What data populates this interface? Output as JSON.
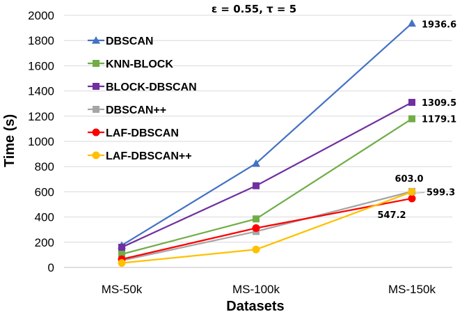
{
  "chart_data": {
    "type": "line",
    "title": "ε = 0.55, τ = 5",
    "xlabel": "Datasets",
    "ylabel": "Time (s)",
    "categories": [
      "MS-50k",
      "MS-100k",
      "MS-150k"
    ],
    "ylim": [
      0,
      2000
    ],
    "yticks": [
      0,
      200,
      400,
      600,
      800,
      1000,
      1200,
      1400,
      1600,
      1800,
      2000
    ],
    "ytick_labels": [
      "0",
      "200",
      "400",
      "600",
      "800",
      "1000",
      "1200",
      "1400",
      "1600",
      "1800",
      "2000"
    ],
    "grid": true,
    "legend_position": "top-left",
    "series": [
      {
        "name": "DBSCAN",
        "color": "#4472C4",
        "marker": "triangle",
        "values": [
          175,
          825,
          1936.6
        ]
      },
      {
        "name": "KNN-BLOCK",
        "color": "#70AD47",
        "marker": "square",
        "values": [
          105,
          385,
          1179.1
        ]
      },
      {
        "name": "BLOCK-DBSCAN",
        "color": "#7030A0",
        "marker": "square",
        "values": [
          160,
          648,
          1309.5
        ]
      },
      {
        "name": "DBSCAN++",
        "color": "#A5A5A5",
        "marker": "square",
        "values": [
          55,
          285,
          603.0
        ]
      },
      {
        "name": "LAF-DBSCAN",
        "color": "#FF0000",
        "marker": "circle",
        "values": [
          65,
          312,
          547.2
        ]
      },
      {
        "name": "LAF-DBSCAN++",
        "color": "#FFC000",
        "marker": "circle",
        "values": [
          35,
          142,
          599.3
        ]
      }
    ],
    "data_labels": [
      {
        "series": "DBSCAN",
        "text": "1936.6"
      },
      {
        "series": "BLOCK-DBSCAN",
        "text": "1309.5"
      },
      {
        "series": "KNN-BLOCK",
        "text": "1179.1"
      },
      {
        "series": "DBSCAN++",
        "text": "603.0"
      },
      {
        "series": "LAF-DBSCAN++",
        "text": "599.3"
      },
      {
        "series": "LAF-DBSCAN",
        "text": "547.2"
      }
    ]
  }
}
